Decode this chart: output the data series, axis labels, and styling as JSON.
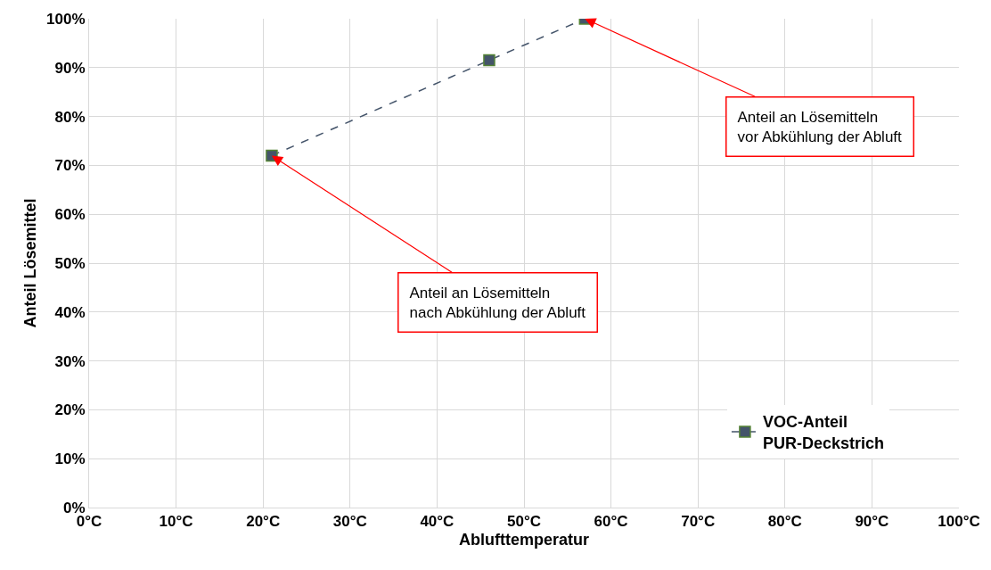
{
  "chart_data": {
    "type": "line",
    "xlabel": "Ablufttemperatur",
    "ylabel": "Anteil Lösemittel",
    "x": [
      21,
      46,
      57
    ],
    "series": [
      {
        "name": "VOC-Anteil PUR-Deckstrich",
        "color": "#44546a",
        "values": [
          72,
          91.5,
          100
        ]
      }
    ],
    "xlim": [
      0,
      100
    ],
    "ylim": [
      0,
      100
    ],
    "xticks": [
      {
        "value": 0,
        "label": "0°C"
      },
      {
        "value": 10,
        "label": "10°C"
      },
      {
        "value": 20,
        "label": "20°C"
      },
      {
        "value": 30,
        "label": "30°C"
      },
      {
        "value": 40,
        "label": "40°C"
      },
      {
        "value": 50,
        "label": "50°C"
      },
      {
        "value": 60,
        "label": "60°C"
      },
      {
        "value": 70,
        "label": "70°C"
      },
      {
        "value": 80,
        "label": "80°C"
      },
      {
        "value": 90,
        "label": "90°C"
      },
      {
        "value": 100,
        "label": "100°C"
      }
    ],
    "yticks": [
      {
        "value": 0,
        "label": "0%"
      },
      {
        "value": 10,
        "label": "10%"
      },
      {
        "value": 20,
        "label": "20%"
      },
      {
        "value": 30,
        "label": "30%"
      },
      {
        "value": 40,
        "label": "40%"
      },
      {
        "value": 50,
        "label": "50%"
      },
      {
        "value": 60,
        "label": "60%"
      },
      {
        "value": 70,
        "label": "70%"
      },
      {
        "value": 80,
        "label": "80%"
      },
      {
        "value": 90,
        "label": "90%"
      },
      {
        "value": 100,
        "label": "100%"
      }
    ],
    "annotations": [
      {
        "text": "Anteil an Lösemitteln nach Abkühlung der Abluft",
        "x": 21,
        "y": 72
      },
      {
        "text": "Anteil an Lösemitteln vor Abkühlung der Abluft",
        "x": 57,
        "y": 100
      }
    ],
    "grid": true,
    "legend": "bottom right",
    "marker": "square",
    "line_style": "dashed"
  }
}
